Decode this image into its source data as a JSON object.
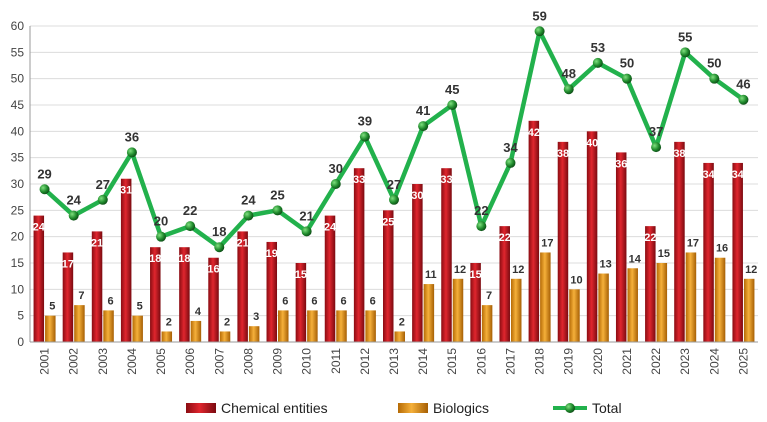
{
  "chart_data": {
    "type": "bar",
    "categories": [
      "2001",
      "2002",
      "2003",
      "2004",
      "2005",
      "2006",
      "2007",
      "2008",
      "2009",
      "2010",
      "2011",
      "2012",
      "2013",
      "2014",
      "2015",
      "2016",
      "2017",
      "2018",
      "2019",
      "2020",
      "2021",
      "2022",
      "2023",
      "2024",
      "2025"
    ],
    "series": [
      {
        "name": "Chemical entities",
        "type": "bar",
        "color": "#c0141c",
        "values": [
          24,
          17,
          21,
          31,
          18,
          18,
          16,
          21,
          19,
          15,
          24,
          33,
          25,
          30,
          33,
          15,
          22,
          42,
          38,
          40,
          36,
          22,
          38,
          34,
          34
        ]
      },
      {
        "name": "Biologics",
        "type": "bar",
        "color": "#e8950f",
        "values": [
          5,
          7,
          6,
          5,
          2,
          4,
          2,
          3,
          6,
          6,
          6,
          6,
          2,
          11,
          12,
          7,
          12,
          17,
          10,
          13,
          14,
          15,
          17,
          16,
          12
        ]
      },
      {
        "name": "Total",
        "type": "line",
        "color": "#22b14c",
        "values": [
          29,
          24,
          27,
          36,
          20,
          22,
          18,
          24,
          25,
          21,
          30,
          39,
          27,
          41,
          45,
          22,
          34,
          59,
          48,
          53,
          50,
          37,
          55,
          50,
          46
        ]
      }
    ],
    "ylim": [
      0,
      60
    ],
    "yticks": [
      "0",
      "5",
      "10",
      "15",
      "20",
      "25",
      "30",
      "35",
      "40",
      "45",
      "50",
      "55",
      "60"
    ],
    "grid": true,
    "legend": "bottom"
  }
}
